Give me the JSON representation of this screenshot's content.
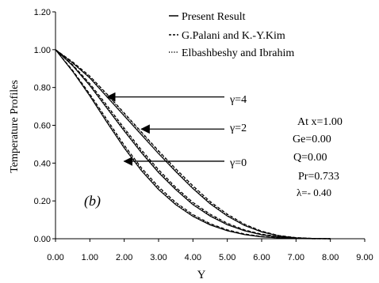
{
  "chart_data": {
    "type": "line",
    "xlabel": "Y",
    "ylabel": "Temperature Profiles",
    "xlim": [
      0,
      9
    ],
    "ylim": [
      0,
      1.2
    ],
    "xticks": [
      "0.00",
      "1.00",
      "2.00",
      "3.00",
      "4.00",
      "5.00",
      "6.00",
      "7.00",
      "8.00",
      "9.00"
    ],
    "yticks": [
      "0.00",
      "0.20",
      "0.40",
      "0.60",
      "0.80",
      "1.00",
      "1.20"
    ],
    "grid": false,
    "legend_position": "top-center",
    "legend": [
      {
        "label": "Present Result",
        "style": "solid"
      },
      {
        "label": "G.Palani and K.-Y.Kim",
        "style": "dashed"
      },
      {
        "label": "Elbashbeshy and Ibrahim",
        "style": "dotted"
      }
    ],
    "annotations": {
      "panel_label": "(b)",
      "params": [
        "At x=1.00",
        "Ge=0.00",
        "Q=0.00",
        "Pr=0.733",
        "λ=- 0.40"
      ],
      "gamma_labels": [
        {
          "text": "γ=4",
          "points_to_y": 0.75,
          "at_x": 1.5
        },
        {
          "text": "γ=2",
          "points_to_y": 0.58,
          "at_x": 2.5
        },
        {
          "text": "γ=0",
          "points_to_y": 0.41,
          "at_x": 2.0
        }
      ]
    },
    "series": [
      {
        "group": "γ=4",
        "style": "solid",
        "x": [
          0,
          0.5,
          1.0,
          1.5,
          2.0,
          2.5,
          3.0,
          3.5,
          4.0,
          4.5,
          5.0,
          5.5,
          6.0,
          6.5,
          7.0,
          7.5,
          8.0
        ],
        "y": [
          1.0,
          0.93,
          0.85,
          0.75,
          0.65,
          0.55,
          0.45,
          0.355,
          0.265,
          0.185,
          0.12,
          0.07,
          0.036,
          0.015,
          0.005,
          0.001,
          0.0
        ]
      },
      {
        "group": "γ=4",
        "style": "dashed",
        "x": [
          0,
          0.5,
          1.0,
          1.5,
          2.0,
          2.5,
          3.0,
          3.5,
          4.0,
          4.5,
          5.0,
          5.5,
          6.0,
          6.5,
          7.0,
          7.5,
          8.0
        ],
        "y": [
          1.0,
          0.935,
          0.86,
          0.765,
          0.665,
          0.565,
          0.465,
          0.37,
          0.28,
          0.197,
          0.13,
          0.077,
          0.04,
          0.017,
          0.006,
          0.0015,
          0.0
        ]
      },
      {
        "group": "γ=4",
        "style": "dotted",
        "x": [
          0,
          0.5,
          1.0,
          1.5,
          2.0,
          2.5,
          3.0,
          3.5,
          4.0,
          4.5,
          5.0,
          5.5,
          6.0,
          6.5,
          7.0,
          7.5,
          8.0
        ],
        "y": [
          1.0,
          0.93,
          0.855,
          0.76,
          0.66,
          0.56,
          0.46,
          0.362,
          0.272,
          0.19,
          0.125,
          0.073,
          0.038,
          0.016,
          0.005,
          0.001,
          0.0
        ]
      },
      {
        "group": "γ=2",
        "style": "solid",
        "x": [
          0,
          0.5,
          1.0,
          1.5,
          2.0,
          2.5,
          3.0,
          3.5,
          4.0,
          4.5,
          5.0,
          5.5,
          6.0,
          6.5,
          7.0,
          7.5,
          8.0
        ],
        "y": [
          1.0,
          0.915,
          0.81,
          0.69,
          0.57,
          0.455,
          0.35,
          0.26,
          0.18,
          0.12,
          0.074,
          0.042,
          0.021,
          0.009,
          0.003,
          0.001,
          0.0
        ]
      },
      {
        "group": "γ=2",
        "style": "dashed",
        "x": [
          0,
          0.5,
          1.0,
          1.5,
          2.0,
          2.5,
          3.0,
          3.5,
          4.0,
          4.5,
          5.0,
          5.5,
          6.0,
          6.5,
          7.0,
          7.5,
          8.0
        ],
        "y": [
          1.0,
          0.92,
          0.82,
          0.705,
          0.585,
          0.47,
          0.365,
          0.272,
          0.192,
          0.13,
          0.082,
          0.047,
          0.024,
          0.011,
          0.004,
          0.001,
          0.0
        ]
      },
      {
        "group": "γ=2",
        "style": "dotted",
        "x": [
          0,
          0.5,
          1.0,
          1.5,
          2.0,
          2.5,
          3.0,
          3.5,
          4.0,
          4.5,
          5.0,
          5.5,
          6.0,
          6.5,
          7.0,
          7.5,
          8.0
        ],
        "y": [
          1.0,
          0.917,
          0.815,
          0.697,
          0.577,
          0.462,
          0.357,
          0.266,
          0.186,
          0.125,
          0.078,
          0.044,
          0.022,
          0.01,
          0.003,
          0.001,
          0.0
        ]
      },
      {
        "group": "γ=0",
        "style": "solid",
        "x": [
          0,
          0.5,
          1.0,
          1.5,
          2.0,
          2.5,
          3.0,
          3.5,
          4.0,
          4.5,
          5.0,
          5.5,
          6.0,
          6.5,
          7.0,
          7.5,
          8.0
        ],
        "y": [
          1.0,
          0.885,
          0.755,
          0.615,
          0.48,
          0.36,
          0.26,
          0.18,
          0.118,
          0.073,
          0.042,
          0.022,
          0.01,
          0.004,
          0.001,
          0.0,
          0.0
        ]
      },
      {
        "group": "γ=0",
        "style": "dashed",
        "x": [
          0,
          0.5,
          1.0,
          1.5,
          2.0,
          2.5,
          3.0,
          3.5,
          4.0,
          4.5,
          5.0,
          5.5,
          6.0,
          6.5,
          7.0,
          7.5,
          8.0
        ],
        "y": [
          1.0,
          0.89,
          0.765,
          0.63,
          0.495,
          0.375,
          0.275,
          0.192,
          0.128,
          0.08,
          0.047,
          0.025,
          0.012,
          0.005,
          0.002,
          0.0,
          0.0
        ]
      },
      {
        "group": "γ=0",
        "style": "dotted",
        "x": [
          0,
          0.5,
          1.0,
          1.5,
          2.0,
          2.5,
          3.0,
          3.5,
          4.0,
          4.5,
          5.0,
          5.5,
          6.0,
          6.5,
          7.0,
          7.5,
          8.0
        ],
        "y": [
          1.0,
          0.887,
          0.76,
          0.622,
          0.488,
          0.368,
          0.268,
          0.186,
          0.123,
          0.077,
          0.044,
          0.023,
          0.011,
          0.004,
          0.001,
          0.0,
          0.0
        ]
      }
    ]
  }
}
